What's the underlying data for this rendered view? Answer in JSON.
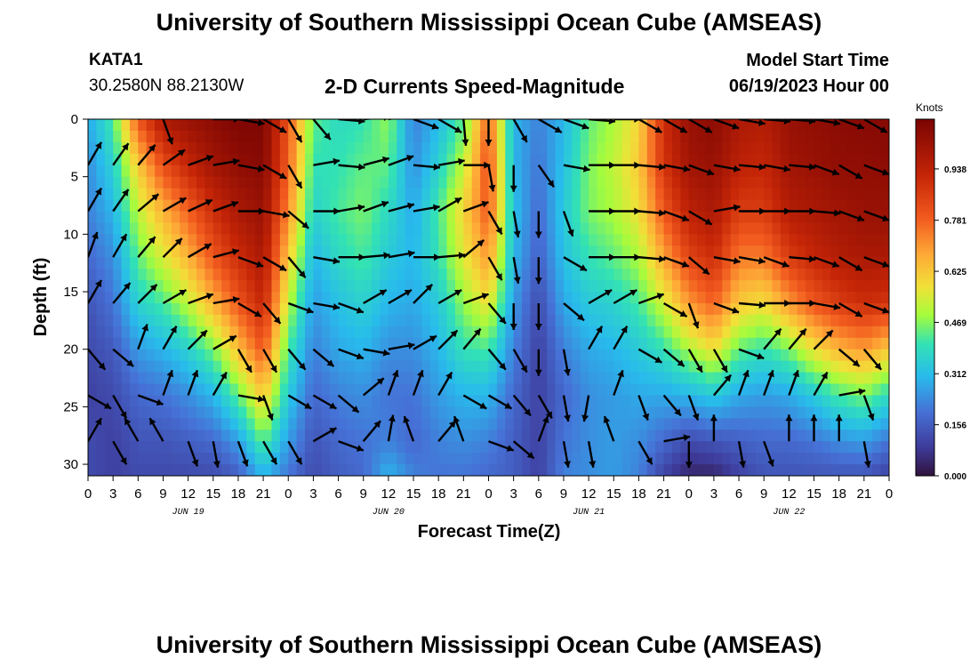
{
  "header": {
    "title": "University of Southern Mississippi Ocean Cube (AMSEAS)",
    "station_id": "KATA1",
    "coordinates": "30.2580N  88.2130W",
    "chart_title": "2-D Currents Speed-Magnitude",
    "model_start_label": "Model Start Time",
    "model_start_value": "06/19/2023 Hour 00"
  },
  "footer": {
    "title": "University of Southern Mississippi Ocean Cube (AMSEAS)"
  },
  "chart_data": {
    "type": "heatmap",
    "title": "2-D Currents Speed-Magnitude",
    "xlabel": "Forecast Time(Z)",
    "ylabel": "Depth (ft)",
    "xlim": [
      0,
      96
    ],
    "ylim": [
      0,
      31
    ],
    "x_tick_labels": [
      "0",
      "3",
      "6",
      "9",
      "12",
      "15",
      "18",
      "21",
      "0",
      "3",
      "6",
      "9",
      "12",
      "15",
      "18",
      "21",
      "0",
      "3",
      "6",
      "9",
      "12",
      "15",
      "18",
      "21",
      "0",
      "3",
      "6",
      "9",
      "12",
      "15",
      "18",
      "21",
      "0"
    ],
    "y_ticks": [
      0,
      5,
      10,
      15,
      20,
      25,
      30
    ],
    "day_labels": [
      "JUN 19",
      "JUN 20",
      "JUN 21",
      "JUN 22"
    ],
    "colorbar": {
      "unit": "Knots",
      "tick_values": [
        0.938,
        0.781,
        0.625,
        0.469,
        0.312,
        0.156,
        0.0
      ],
      "tick_labels": [
        "0.938",
        "0.781",
        "0.625",
        "0.469",
        "0.312",
        "0.156",
        "0.000"
      ],
      "range": [
        0.0,
        1.09
      ]
    },
    "speed_hours": [
      0,
      3,
      6,
      9,
      12,
      15,
      18,
      21,
      24,
      27,
      30,
      33,
      36,
      39,
      42,
      45,
      48,
      51,
      54,
      57,
      60,
      63,
      66,
      69,
      72,
      75,
      78,
      81,
      84,
      87,
      90,
      93,
      96
    ],
    "speed_depths": [
      0,
      4,
      8,
      12,
      16,
      20,
      24,
      28,
      31
    ],
    "speed_knots": [
      [
        0.28,
        0.24,
        0.22,
        0.18,
        0.14,
        0.12,
        0.1,
        0.12,
        0.12
      ],
      [
        0.42,
        0.36,
        0.3,
        0.24,
        0.2,
        0.15,
        0.12,
        0.1,
        0.1
      ],
      [
        0.8,
        0.62,
        0.52,
        0.44,
        0.36,
        0.26,
        0.18,
        0.14,
        0.12
      ],
      [
        0.98,
        0.82,
        0.66,
        0.55,
        0.42,
        0.3,
        0.2,
        0.14,
        0.12
      ],
      [
        1.02,
        0.92,
        0.78,
        0.66,
        0.52,
        0.36,
        0.24,
        0.16,
        0.12
      ],
      [
        1.05,
        1.0,
        0.9,
        0.8,
        0.66,
        0.46,
        0.3,
        0.18,
        0.12
      ],
      [
        1.08,
        1.04,
        0.98,
        0.9,
        0.8,
        0.64,
        0.44,
        0.26,
        0.16
      ],
      [
        1.08,
        1.06,
        1.02,
        0.98,
        0.92,
        0.8,
        0.62,
        0.44,
        0.3
      ],
      [
        0.8,
        0.78,
        0.72,
        0.62,
        0.52,
        0.42,
        0.34,
        0.26,
        0.2
      ],
      [
        0.44,
        0.4,
        0.36,
        0.3,
        0.26,
        0.22,
        0.18,
        0.14,
        0.12
      ],
      [
        0.38,
        0.4,
        0.42,
        0.38,
        0.32,
        0.28,
        0.22,
        0.18,
        0.16
      ],
      [
        0.4,
        0.44,
        0.46,
        0.42,
        0.36,
        0.3,
        0.24,
        0.2,
        0.18
      ],
      [
        0.48,
        0.44,
        0.38,
        0.34,
        0.3,
        0.24,
        0.2,
        0.22,
        0.3
      ],
      [
        0.22,
        0.24,
        0.28,
        0.3,
        0.28,
        0.24,
        0.2,
        0.18,
        0.22
      ],
      [
        0.3,
        0.36,
        0.42,
        0.4,
        0.34,
        0.3,
        0.26,
        0.22,
        0.2
      ],
      [
        0.44,
        0.52,
        0.6,
        0.56,
        0.48,
        0.4,
        0.3,
        0.24,
        0.2
      ],
      [
        0.78,
        0.82,
        0.8,
        0.7,
        0.58,
        0.42,
        0.3,
        0.22,
        0.18
      ],
      [
        0.3,
        0.3,
        0.32,
        0.3,
        0.26,
        0.22,
        0.18,
        0.16,
        0.16
      ],
      [
        0.22,
        0.2,
        0.18,
        0.16,
        0.12,
        0.1,
        0.1,
        0.1,
        0.1
      ],
      [
        0.3,
        0.32,
        0.34,
        0.32,
        0.28,
        0.22,
        0.18,
        0.2,
        0.22
      ],
      [
        0.44,
        0.46,
        0.46,
        0.4,
        0.34,
        0.28,
        0.24,
        0.24,
        0.24
      ],
      [
        0.5,
        0.52,
        0.5,
        0.44,
        0.36,
        0.3,
        0.26,
        0.26,
        0.26
      ],
      [
        0.6,
        0.62,
        0.58,
        0.5,
        0.42,
        0.34,
        0.28,
        0.24,
        0.22
      ],
      [
        0.9,
        0.88,
        0.8,
        0.68,
        0.54,
        0.4,
        0.28,
        0.18,
        0.1
      ],
      [
        1.02,
        1.0,
        0.94,
        0.84,
        0.7,
        0.5,
        0.3,
        0.12,
        0.04
      ],
      [
        1.05,
        1.02,
        0.98,
        0.9,
        0.78,
        0.58,
        0.34,
        0.14,
        0.04
      ],
      [
        0.98,
        0.94,
        0.86,
        0.74,
        0.62,
        0.44,
        0.28,
        0.16,
        0.1
      ],
      [
        0.96,
        0.92,
        0.86,
        0.74,
        0.58,
        0.4,
        0.26,
        0.18,
        0.14
      ],
      [
        1.02,
        1.0,
        0.96,
        0.86,
        0.7,
        0.46,
        0.28,
        0.18,
        0.14
      ],
      [
        1.04,
        1.02,
        0.98,
        0.92,
        0.8,
        0.58,
        0.34,
        0.2,
        0.14
      ],
      [
        1.05,
        1.04,
        1.0,
        0.96,
        0.86,
        0.66,
        0.42,
        0.24,
        0.14
      ],
      [
        1.06,
        1.04,
        1.02,
        0.98,
        0.9,
        0.7,
        0.46,
        0.26,
        0.14
      ],
      [
        1.06,
        1.05,
        1.02,
        0.98,
        0.88,
        0.62,
        0.38,
        0.2,
        0.1
      ]
    ],
    "vector_hours": [
      0,
      3,
      6,
      9,
      12,
      15,
      18,
      21,
      24,
      27,
      30,
      33,
      36,
      39,
      42,
      45,
      48,
      51,
      54,
      57,
      60,
      63,
      66,
      69,
      72,
      75,
      78,
      81,
      84,
      87,
      90,
      93
    ],
    "vector_depths": [
      0,
      4,
      8,
      12,
      16,
      20,
      24,
      28
    ],
    "vector_direction_deg": [
      [
        45,
        50,
        65,
        160,
        300,
        90,
        100,
        120,
        150,
        140,
        95,
        85,
        80,
        110,
        120,
        175,
        180,
        150,
        120,
        110,
        95,
        90,
        120,
        120,
        120,
        110,
        100,
        95,
        95,
        100,
        110,
        120
      ],
      [
        30,
        35,
        40,
        55,
        70,
        80,
        100,
        120,
        150,
        80,
        95,
        75,
        70,
        95,
        80,
        90,
        170,
        180,
        145,
        100,
        90,
        90,
        95,
        100,
        110,
        100,
        95,
        100,
        95,
        110,
        120,
        110
      ],
      [
        30,
        35,
        50,
        60,
        65,
        70,
        90,
        100,
        130,
        90,
        80,
        70,
        75,
        80,
        60,
        70,
        150,
        170,
        180,
        160,
        90,
        90,
        95,
        110,
        120,
        80,
        90,
        90,
        90,
        95,
        110,
        110
      ],
      [
        20,
        30,
        40,
        45,
        60,
        75,
        110,
        120,
        140,
        100,
        90,
        85,
        80,
        90,
        85,
        50,
        150,
        170,
        180,
        120,
        90,
        90,
        95,
        110,
        130,
        100,
        100,
        110,
        95,
        110,
        120,
        110
      ],
      [
        30,
        40,
        45,
        60,
        70,
        80,
        120,
        140,
        110,
        100,
        110,
        60,
        60,
        45,
        60,
        70,
        140,
        180,
        180,
        130,
        60,
        60,
        70,
        120,
        160,
        110,
        95,
        90,
        90,
        100,
        120,
        110
      ],
      [
        140,
        130,
        20,
        30,
        45,
        60,
        150,
        150,
        140,
        130,
        110,
        100,
        80,
        60,
        45,
        40,
        140,
        150,
        180,
        170,
        30,
        30,
        120,
        130,
        150,
        150,
        110,
        40,
        40,
        45,
        130,
        140
      ],
      [
        120,
        150,
        110,
        20,
        20,
        30,
        100,
        160,
        120,
        120,
        130,
        50,
        20,
        20,
        30,
        120,
        120,
        140,
        150,
        170,
        190,
        20,
        160,
        140,
        160,
        40,
        20,
        20,
        20,
        30,
        80,
        160
      ],
      [
        30,
        150,
        330,
        330,
        160,
        170,
        160,
        150,
        150,
        60,
        110,
        40,
        10,
        340,
        40,
        340,
        110,
        130,
        20,
        170,
        170,
        340,
        150,
        80,
        180,
        0,
        170,
        160,
        0,
        0,
        0,
        170
      ]
    ]
  }
}
